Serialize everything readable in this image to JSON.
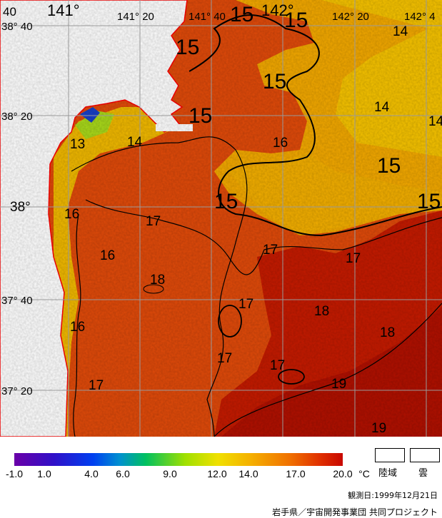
{
  "map": {
    "lat_labels": [
      "38° 40",
      "38° 20",
      "38°",
      "37° 40",
      "37° 20"
    ],
    "lon_labels": [
      "141°",
      "141° 20",
      "141° 40",
      "142°",
      "142° 20",
      "142° 4"
    ],
    "corner_label": "40",
    "contours": [
      {
        "value": "15",
        "big": true
      },
      {
        "value": "15",
        "big": true
      },
      {
        "value": "15",
        "big": true
      },
      {
        "value": "15",
        "big": true
      },
      {
        "value": "15",
        "big": true
      },
      {
        "value": "15",
        "big": true
      },
      {
        "value": "15",
        "big": true
      },
      {
        "value": "15",
        "big": true
      },
      {
        "value": "14",
        "big": false
      },
      {
        "value": "14",
        "big": false
      },
      {
        "value": "14",
        "big": false
      },
      {
        "value": "14",
        "big": false
      },
      {
        "value": "13",
        "big": false
      },
      {
        "value": "16",
        "big": false
      },
      {
        "value": "16",
        "big": false
      },
      {
        "value": "16",
        "big": false
      },
      {
        "value": "16",
        "big": false
      },
      {
        "value": "17",
        "big": false
      },
      {
        "value": "17",
        "big": false
      },
      {
        "value": "17",
        "big": false
      },
      {
        "value": "17",
        "big": false
      },
      {
        "value": "17",
        "big": false
      },
      {
        "value": "17",
        "big": false
      },
      {
        "value": "17",
        "big": false
      },
      {
        "value": "18",
        "big": false
      },
      {
        "value": "18",
        "big": false
      },
      {
        "value": "18",
        "big": false
      },
      {
        "value": "19",
        "big": false
      },
      {
        "value": "19",
        "big": false
      }
    ]
  },
  "colorbar": {
    "ticks": [
      "-1.0",
      "1.0",
      "4.0",
      "6.0",
      "9.0",
      "12.0",
      "14.0",
      "17.0",
      "20.0"
    ],
    "unit": "°C",
    "range": [
      -1.0,
      20.0
    ]
  },
  "legend": {
    "land_label": "陸域",
    "cloud_label": "雲"
  },
  "observation_date": "観測日:1999年12月21日",
  "credit": "岩手県／宇宙開発事業団 共同プロジェクト",
  "colors": {
    "land_edge": "#ff0000",
    "grid": "#9a9a9a",
    "warm_water": "#c81800",
    "mid_water": "#e24a08",
    "cool_water": "#f0b000"
  }
}
